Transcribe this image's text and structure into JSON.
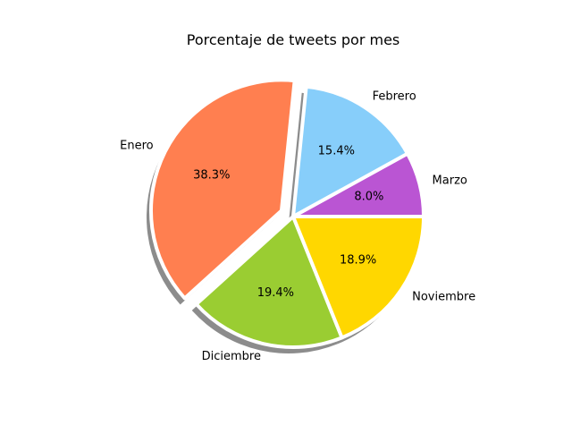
{
  "chart_data": {
    "type": "pie",
    "title": "Porcentaje de tweets por mes",
    "slices": [
      {
        "label": "Marzo",
        "value": 8.0,
        "pct_text": "8.0%",
        "color": "#ba55d3",
        "explode": false
      },
      {
        "label": "Febrero",
        "value": 15.4,
        "pct_text": "15.4%",
        "color": "#87cefa",
        "explode": false
      },
      {
        "label": "Enero",
        "value": 38.3,
        "pct_text": "38.3%",
        "color": "#ff7f50",
        "explode": true
      },
      {
        "label": "Diciembre",
        "value": 19.4,
        "pct_text": "19.4%",
        "color": "#9acd32",
        "explode": false
      },
      {
        "label": "Noviembre",
        "value": 18.9,
        "pct_text": "18.9%",
        "color": "#ffd700",
        "explode": false
      }
    ],
    "start_angle": 0,
    "direction": "counterclockwise",
    "shadow": true,
    "edge_color": "#ffffff"
  }
}
